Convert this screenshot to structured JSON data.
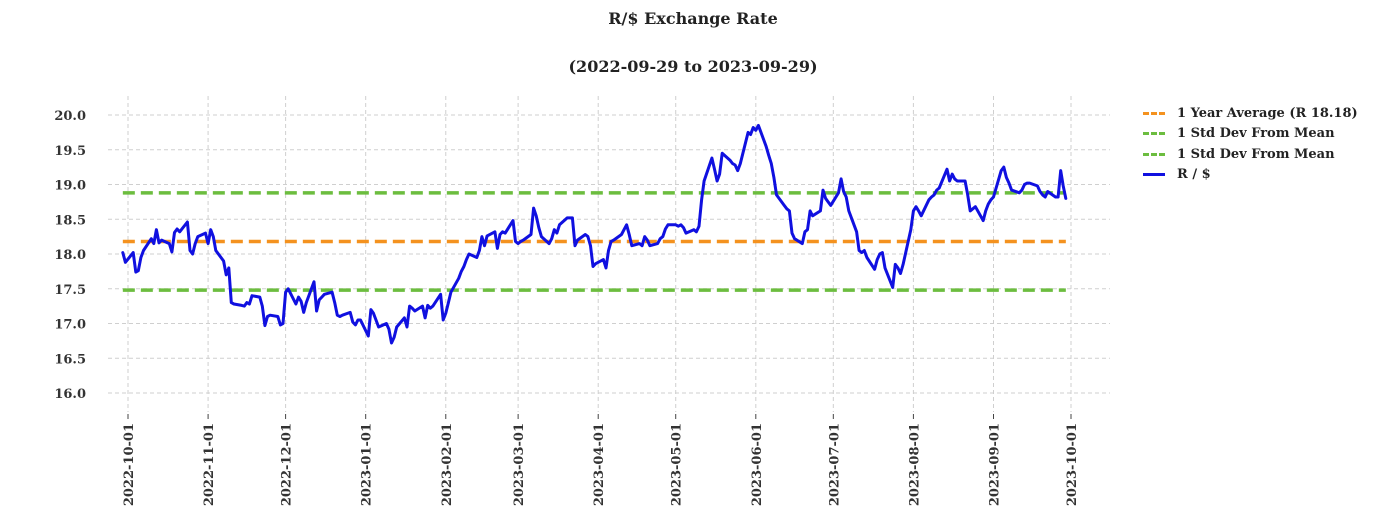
{
  "chart_data": {
    "type": "line",
    "title": "R/$  Exchange Rate",
    "subtitle": "(2022-09-29 to 2023-09-29)",
    "xlabel": "",
    "ylabel": "",
    "ylim": [
      15.8,
      20.2
    ],
    "yticks": [
      "16.0",
      "16.5",
      "17.0",
      "17.5",
      "18.0",
      "18.5",
      "19.0",
      "19.5",
      "20.0"
    ],
    "xticks": [
      "2022-10-01",
      "2022-11-01",
      "2022-12-01",
      "2023-01-01",
      "2023-02-01",
      "2023-03-01",
      "2023-04-01",
      "2023-05-01",
      "2023-06-01",
      "2023-07-01",
      "2023-08-01",
      "2023-09-01",
      "2023-10-01"
    ],
    "grid": true,
    "legend_position": "outside-right",
    "reference_lines": [
      {
        "name": "1 Year Average (R 18.18)",
        "value": 18.18,
        "color": "#f4921f",
        "style": "dashed"
      },
      {
        "name": "1 Std Dev From Mean",
        "value": 18.88,
        "color": "#6cbd3f",
        "style": "dashed"
      },
      {
        "name": "1 Std Dev From Mean",
        "value": 17.48,
        "color": "#6cbd3f",
        "style": "dashed"
      }
    ],
    "series": [
      {
        "name": "R / $",
        "color": "#1010e0",
        "points": [
          [
            "2022-09-29",
            18.02
          ],
          [
            "2022-09-30",
            17.88
          ],
          [
            "2022-10-03",
            18.02
          ],
          [
            "2022-10-04",
            17.74
          ],
          [
            "2022-10-05",
            17.76
          ],
          [
            "2022-10-06",
            17.95
          ],
          [
            "2022-10-07",
            18.05
          ],
          [
            "2022-10-10",
            18.22
          ],
          [
            "2022-10-11",
            18.15
          ],
          [
            "2022-10-12",
            18.35
          ],
          [
            "2022-10-13",
            18.16
          ],
          [
            "2022-10-14",
            18.2
          ],
          [
            "2022-10-17",
            18.15
          ],
          [
            "2022-10-18",
            18.03
          ],
          [
            "2022-10-19",
            18.31
          ],
          [
            "2022-10-20",
            18.36
          ],
          [
            "2022-10-21",
            18.32
          ],
          [
            "2022-10-24",
            18.46
          ],
          [
            "2022-10-25",
            18.05
          ],
          [
            "2022-10-26",
            18.0
          ],
          [
            "2022-10-27",
            18.15
          ],
          [
            "2022-10-28",
            18.25
          ],
          [
            "2022-10-31",
            18.3
          ],
          [
            "2022-11-01",
            18.15
          ],
          [
            "2022-11-02",
            18.35
          ],
          [
            "2022-11-03",
            18.25
          ],
          [
            "2022-11-04",
            18.05
          ],
          [
            "2022-11-07",
            17.9
          ],
          [
            "2022-11-08",
            17.7
          ],
          [
            "2022-11-09",
            17.8
          ],
          [
            "2022-11-10",
            17.3
          ],
          [
            "2022-11-11",
            17.28
          ],
          [
            "2022-11-14",
            17.26
          ],
          [
            "2022-11-15",
            17.25
          ],
          [
            "2022-11-16",
            17.3
          ],
          [
            "2022-11-17",
            17.28
          ],
          [
            "2022-11-18",
            17.4
          ],
          [
            "2022-11-21",
            17.38
          ],
          [
            "2022-11-22",
            17.25
          ],
          [
            "2022-11-23",
            16.97
          ],
          [
            "2022-11-24",
            17.1
          ],
          [
            "2022-11-25",
            17.12
          ],
          [
            "2022-11-28",
            17.1
          ],
          [
            "2022-11-29",
            16.98
          ],
          [
            "2022-11-30",
            17.0
          ],
          [
            "2022-12-01",
            17.45
          ],
          [
            "2022-12-02",
            17.5
          ],
          [
            "2022-12-05",
            17.28
          ],
          [
            "2022-12-06",
            17.38
          ],
          [
            "2022-12-07",
            17.32
          ],
          [
            "2022-12-08",
            17.16
          ],
          [
            "2022-12-09",
            17.3
          ],
          [
            "2022-12-12",
            17.6
          ],
          [
            "2022-12-13",
            17.18
          ],
          [
            "2022-12-14",
            17.34
          ],
          [
            "2022-12-15",
            17.38
          ],
          [
            "2022-12-16",
            17.42
          ],
          [
            "2022-12-19",
            17.45
          ],
          [
            "2022-12-20",
            17.3
          ],
          [
            "2022-12-21",
            17.12
          ],
          [
            "2022-12-22",
            17.1
          ],
          [
            "2022-12-23",
            17.12
          ],
          [
            "2022-12-26",
            17.16
          ],
          [
            "2022-12-27",
            17.02
          ],
          [
            "2022-12-28",
            16.98
          ],
          [
            "2022-12-29",
            17.05
          ],
          [
            "2022-12-30",
            17.05
          ],
          [
            "2023-01-02",
            16.82
          ],
          [
            "2023-01-03",
            17.2
          ],
          [
            "2023-01-04",
            17.15
          ],
          [
            "2023-01-05",
            17.05
          ],
          [
            "2023-01-06",
            16.95
          ],
          [
            "2023-01-09",
            17.0
          ],
          [
            "2023-01-10",
            16.92
          ],
          [
            "2023-01-11",
            16.72
          ],
          [
            "2023-01-12",
            16.8
          ],
          [
            "2023-01-13",
            16.95
          ],
          [
            "2023-01-16",
            17.08
          ],
          [
            "2023-01-17",
            16.95
          ],
          [
            "2023-01-18",
            17.25
          ],
          [
            "2023-01-19",
            17.22
          ],
          [
            "2023-01-20",
            17.18
          ],
          [
            "2023-01-23",
            17.25
          ],
          [
            "2023-01-24",
            17.08
          ],
          [
            "2023-01-25",
            17.26
          ],
          [
            "2023-01-26",
            17.22
          ],
          [
            "2023-01-27",
            17.25
          ],
          [
            "2023-01-30",
            17.42
          ],
          [
            "2023-01-31",
            17.05
          ],
          [
            "2023-02-01",
            17.15
          ],
          [
            "2023-02-02",
            17.3
          ],
          [
            "2023-02-03",
            17.45
          ],
          [
            "2023-02-06",
            17.65
          ],
          [
            "2023-02-07",
            17.75
          ],
          [
            "2023-02-08",
            17.82
          ],
          [
            "2023-02-09",
            17.92
          ],
          [
            "2023-02-10",
            18.0
          ],
          [
            "2023-02-13",
            17.95
          ],
          [
            "2023-02-14",
            18.05
          ],
          [
            "2023-02-15",
            18.25
          ],
          [
            "2023-02-16",
            18.12
          ],
          [
            "2023-02-17",
            18.26
          ],
          [
            "2023-02-20",
            18.32
          ],
          [
            "2023-02-21",
            18.08
          ],
          [
            "2023-02-22",
            18.28
          ],
          [
            "2023-02-23",
            18.32
          ],
          [
            "2023-02-24",
            18.3
          ],
          [
            "2023-02-27",
            18.48
          ],
          [
            "2023-02-28",
            18.18
          ],
          [
            "2023-03-01",
            18.15
          ],
          [
            "2023-03-02",
            18.18
          ],
          [
            "2023-03-03",
            18.2
          ],
          [
            "2023-03-06",
            18.28
          ],
          [
            "2023-03-07",
            18.66
          ],
          [
            "2023-03-08",
            18.55
          ],
          [
            "2023-03-09",
            18.38
          ],
          [
            "2023-03-10",
            18.25
          ],
          [
            "2023-03-13",
            18.15
          ],
          [
            "2023-03-14",
            18.22
          ],
          [
            "2023-03-15",
            18.35
          ],
          [
            "2023-03-16",
            18.3
          ],
          [
            "2023-03-17",
            18.42
          ],
          [
            "2023-03-20",
            18.52
          ],
          [
            "2023-03-21",
            18.52
          ],
          [
            "2023-03-22",
            18.52
          ],
          [
            "2023-03-23",
            18.12
          ],
          [
            "2023-03-24",
            18.2
          ],
          [
            "2023-03-27",
            18.28
          ],
          [
            "2023-03-28",
            18.25
          ],
          [
            "2023-03-29",
            18.12
          ],
          [
            "2023-03-30",
            17.82
          ],
          [
            "2023-03-31",
            17.86
          ],
          [
            "2023-04-03",
            17.92
          ],
          [
            "2023-04-04",
            17.8
          ],
          [
            "2023-04-05",
            18.05
          ],
          [
            "2023-04-06",
            18.18
          ],
          [
            "2023-04-07",
            18.2
          ],
          [
            "2023-04-10",
            18.28
          ],
          [
            "2023-04-11",
            18.35
          ],
          [
            "2023-04-12",
            18.42
          ],
          [
            "2023-04-13",
            18.28
          ],
          [
            "2023-04-14",
            18.12
          ],
          [
            "2023-04-17",
            18.15
          ],
          [
            "2023-04-18",
            18.12
          ],
          [
            "2023-04-19",
            18.25
          ],
          [
            "2023-04-20",
            18.2
          ],
          [
            "2023-04-21",
            18.12
          ],
          [
            "2023-04-24",
            18.15
          ],
          [
            "2023-04-25",
            18.22
          ],
          [
            "2023-04-26",
            18.25
          ],
          [
            "2023-04-27",
            18.36
          ],
          [
            "2023-04-28",
            18.42
          ],
          [
            "2023-05-01",
            18.42
          ],
          [
            "2023-05-02",
            18.4
          ],
          [
            "2023-05-03",
            18.42
          ],
          [
            "2023-05-04",
            18.38
          ],
          [
            "2023-05-05",
            18.3
          ],
          [
            "2023-05-08",
            18.35
          ],
          [
            "2023-05-09",
            18.32
          ],
          [
            "2023-05-10",
            18.4
          ],
          [
            "2023-05-11",
            18.78
          ],
          [
            "2023-05-12",
            19.05
          ],
          [
            "2023-05-15",
            19.38
          ],
          [
            "2023-05-16",
            19.22
          ],
          [
            "2023-05-17",
            19.05
          ],
          [
            "2023-05-18",
            19.15
          ],
          [
            "2023-05-19",
            19.45
          ],
          [
            "2023-05-22",
            19.35
          ],
          [
            "2023-05-23",
            19.3
          ],
          [
            "2023-05-24",
            19.28
          ],
          [
            "2023-05-25",
            19.2
          ],
          [
            "2023-05-26",
            19.3
          ],
          [
            "2023-05-29",
            19.75
          ],
          [
            "2023-05-30",
            19.72
          ],
          [
            "2023-05-31",
            19.82
          ],
          [
            "2023-06-01",
            19.78
          ],
          [
            "2023-06-02",
            19.85
          ],
          [
            "2023-06-05",
            19.55
          ],
          [
            "2023-06-06",
            19.42
          ],
          [
            "2023-06-07",
            19.3
          ],
          [
            "2023-06-08",
            19.1
          ],
          [
            "2023-06-09",
            18.85
          ],
          [
            "2023-06-12",
            18.7
          ],
          [
            "2023-06-13",
            18.65
          ],
          [
            "2023-06-14",
            18.62
          ],
          [
            "2023-06-15",
            18.3
          ],
          [
            "2023-06-16",
            18.22
          ],
          [
            "2023-06-19",
            18.15
          ],
          [
            "2023-06-20",
            18.32
          ],
          [
            "2023-06-21",
            18.35
          ],
          [
            "2023-06-22",
            18.62
          ],
          [
            "2023-06-23",
            18.55
          ],
          [
            "2023-06-26",
            18.62
          ],
          [
            "2023-06-27",
            18.92
          ],
          [
            "2023-06-28",
            18.8
          ],
          [
            "2023-06-29",
            18.75
          ],
          [
            "2023-06-30",
            18.7
          ],
          [
            "2023-07-03",
            18.88
          ],
          [
            "2023-07-04",
            19.08
          ],
          [
            "2023-07-05",
            18.9
          ],
          [
            "2023-07-06",
            18.82
          ],
          [
            "2023-07-07",
            18.62
          ],
          [
            "2023-07-10",
            18.32
          ],
          [
            "2023-07-11",
            18.05
          ],
          [
            "2023-07-12",
            18.02
          ],
          [
            "2023-07-13",
            18.05
          ],
          [
            "2023-07-14",
            17.95
          ],
          [
            "2023-07-17",
            17.78
          ],
          [
            "2023-07-18",
            17.92
          ],
          [
            "2023-07-19",
            18.0
          ],
          [
            "2023-07-20",
            18.02
          ],
          [
            "2023-07-21",
            17.8
          ],
          [
            "2023-07-24",
            17.52
          ],
          [
            "2023-07-25",
            17.85
          ],
          [
            "2023-07-26",
            17.8
          ],
          [
            "2023-07-27",
            17.72
          ],
          [
            "2023-07-28",
            17.85
          ],
          [
            "2023-07-31",
            18.35
          ],
          [
            "2023-08-01",
            18.62
          ],
          [
            "2023-08-02",
            18.68
          ],
          [
            "2023-08-03",
            18.62
          ],
          [
            "2023-08-04",
            18.55
          ],
          [
            "2023-08-07",
            18.78
          ],
          [
            "2023-08-08",
            18.82
          ],
          [
            "2023-08-09",
            18.85
          ],
          [
            "2023-08-10",
            18.92
          ],
          [
            "2023-08-11",
            18.95
          ],
          [
            "2023-08-14",
            19.22
          ],
          [
            "2023-08-15",
            19.05
          ],
          [
            "2023-08-16",
            19.15
          ],
          [
            "2023-08-17",
            19.08
          ],
          [
            "2023-08-18",
            19.05
          ],
          [
            "2023-08-21",
            19.05
          ],
          [
            "2023-08-22",
            18.85
          ],
          [
            "2023-08-23",
            18.62
          ],
          [
            "2023-08-24",
            18.65
          ],
          [
            "2023-08-25",
            18.68
          ],
          [
            "2023-08-28",
            18.48
          ],
          [
            "2023-08-29",
            18.62
          ],
          [
            "2023-08-30",
            18.72
          ],
          [
            "2023-08-31",
            18.78
          ],
          [
            "2023-09-01",
            18.82
          ],
          [
            "2023-09-04",
            19.2
          ],
          [
            "2023-09-05",
            19.25
          ],
          [
            "2023-09-06",
            19.1
          ],
          [
            "2023-09-07",
            19.02
          ],
          [
            "2023-09-08",
            18.92
          ],
          [
            "2023-09-11",
            18.88
          ],
          [
            "2023-09-12",
            18.92
          ],
          [
            "2023-09-13",
            19.0
          ],
          [
            "2023-09-14",
            19.02
          ],
          [
            "2023-09-15",
            19.02
          ],
          [
            "2023-09-18",
            18.98
          ],
          [
            "2023-09-19",
            18.9
          ],
          [
            "2023-09-20",
            18.85
          ],
          [
            "2023-09-21",
            18.82
          ],
          [
            "2023-09-22",
            18.9
          ],
          [
            "2023-09-25",
            18.82
          ],
          [
            "2023-09-26",
            18.82
          ],
          [
            "2023-09-27",
            19.2
          ],
          [
            "2023-09-28",
            18.98
          ],
          [
            "2023-09-29",
            18.8
          ]
        ]
      }
    ]
  }
}
